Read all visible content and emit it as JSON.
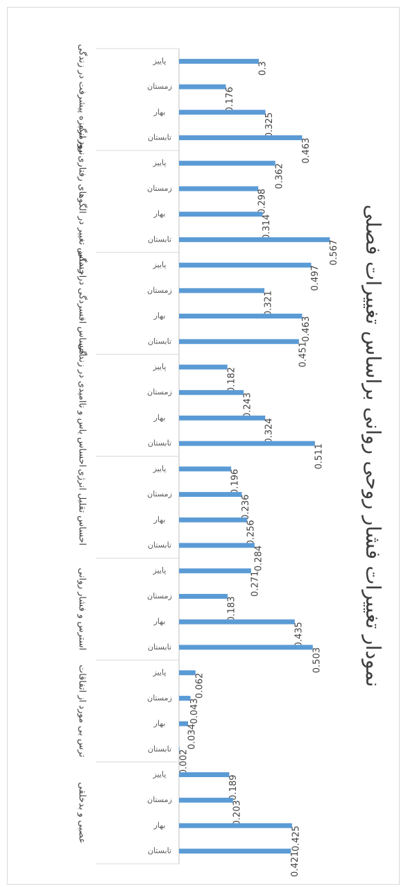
{
  "chart_data": {
    "type": "bar",
    "orientation": "horizontal",
    "title": "نمودار تغییرات فشار روحی روانی براساس تغییرات فصلی",
    "bar_color": "#5b9bd5",
    "subcategory_labels": [
      "پاییز",
      "زمستان",
      "بهار",
      "تابستان"
    ],
    "groups": [
      {
        "category": "نبود انگیزه پیشرفت در زندگی",
        "values": [
          0.3,
          0.176,
          0.325,
          0.463
        ]
      },
      {
        "category": "احساس تغییر در الگوهای رفتاری روزمره",
        "values": [
          0.362,
          0.298,
          0.314,
          0.567
        ]
      },
      {
        "category": "احساس افسردگی در زندگی",
        "values": [
          0.497,
          0.321,
          0.463,
          0.451
        ]
      },
      {
        "category": "احساس یاس و ناامیدی در زندگی",
        "values": [
          0.182,
          0.243,
          0.324,
          0.511
        ]
      },
      {
        "category": "احساس تقلیل انرژی",
        "values": [
          0.196,
          0.236,
          0.256,
          0.284
        ]
      },
      {
        "category": "استرس و فشار روانی",
        "values": [
          0.271,
          0.183,
          0.435,
          0.503
        ]
      },
      {
        "category": "ترس بی مورد از اتفاقات",
        "values": [
          0.062,
          0.043,
          0.034,
          0.002
        ]
      },
      {
        "category": "عصبی و بدخلقی",
        "values": [
          0.189,
          0.203,
          0.425,
          0.421
        ]
      }
    ],
    "xlim": [
      0,
      0.6
    ],
    "grid": false,
    "legend": "none"
  }
}
